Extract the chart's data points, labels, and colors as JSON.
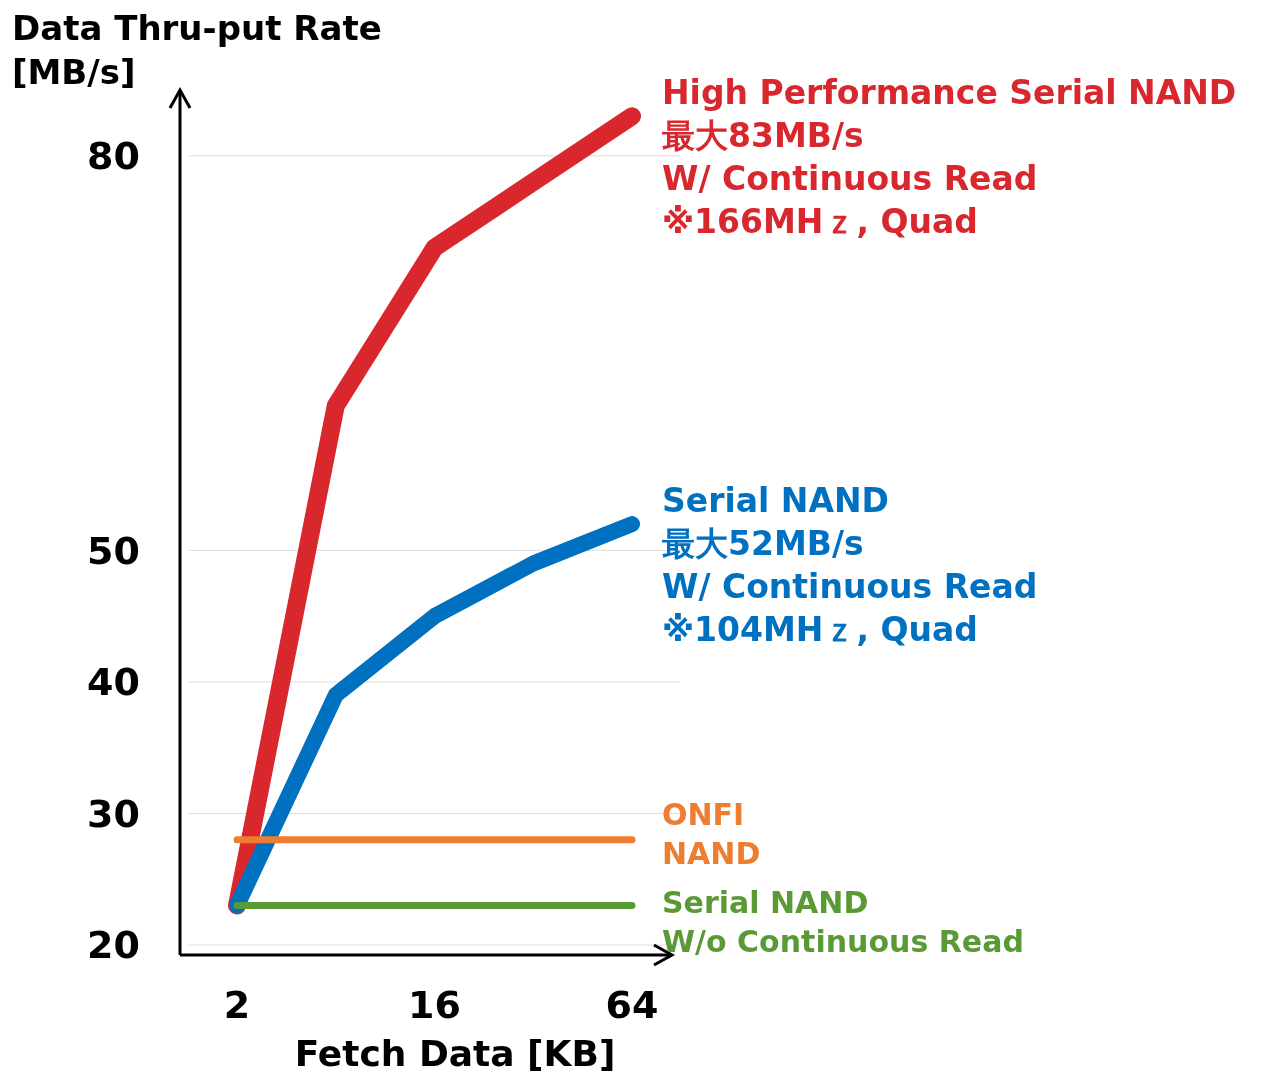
{
  "chart_data": {
    "type": "line",
    "xlabel": "Fetch Data [KB]",
    "ylabel": "Data Thru-put Rate\n[MB/s]",
    "categories": [
      "2",
      null,
      "16",
      null,
      "64"
    ],
    "ylim": [
      20,
      85
    ],
    "yticks": [
      20,
      30,
      40,
      50,
      80
    ],
    "grid": "y",
    "line_style": "solid",
    "marker": "none",
    "series": [
      {
        "name": "High Performance Serial NAND\n最大83MB/s\nW/ Continuous Read\n※166MHｚ, Quad",
        "color": "#d9272e",
        "values": [
          23,
          61,
          73,
          78,
          83
        ]
      },
      {
        "name": "Serial NAND\n最大52MB/s\nW/ Continuous Read\n※104MHｚ, Quad",
        "color": "#0070c0",
        "values": [
          23,
          39,
          45,
          49,
          52
        ]
      },
      {
        "name": "ONFI\nNAND",
        "color": "#ed7d31",
        "values": [
          28,
          28,
          28,
          28,
          28
        ]
      },
      {
        "name": "Serial NAND\nW/o Continuous Read",
        "color": "#5a9a35",
        "values": [
          23,
          23,
          23,
          23,
          23
        ]
      }
    ]
  }
}
